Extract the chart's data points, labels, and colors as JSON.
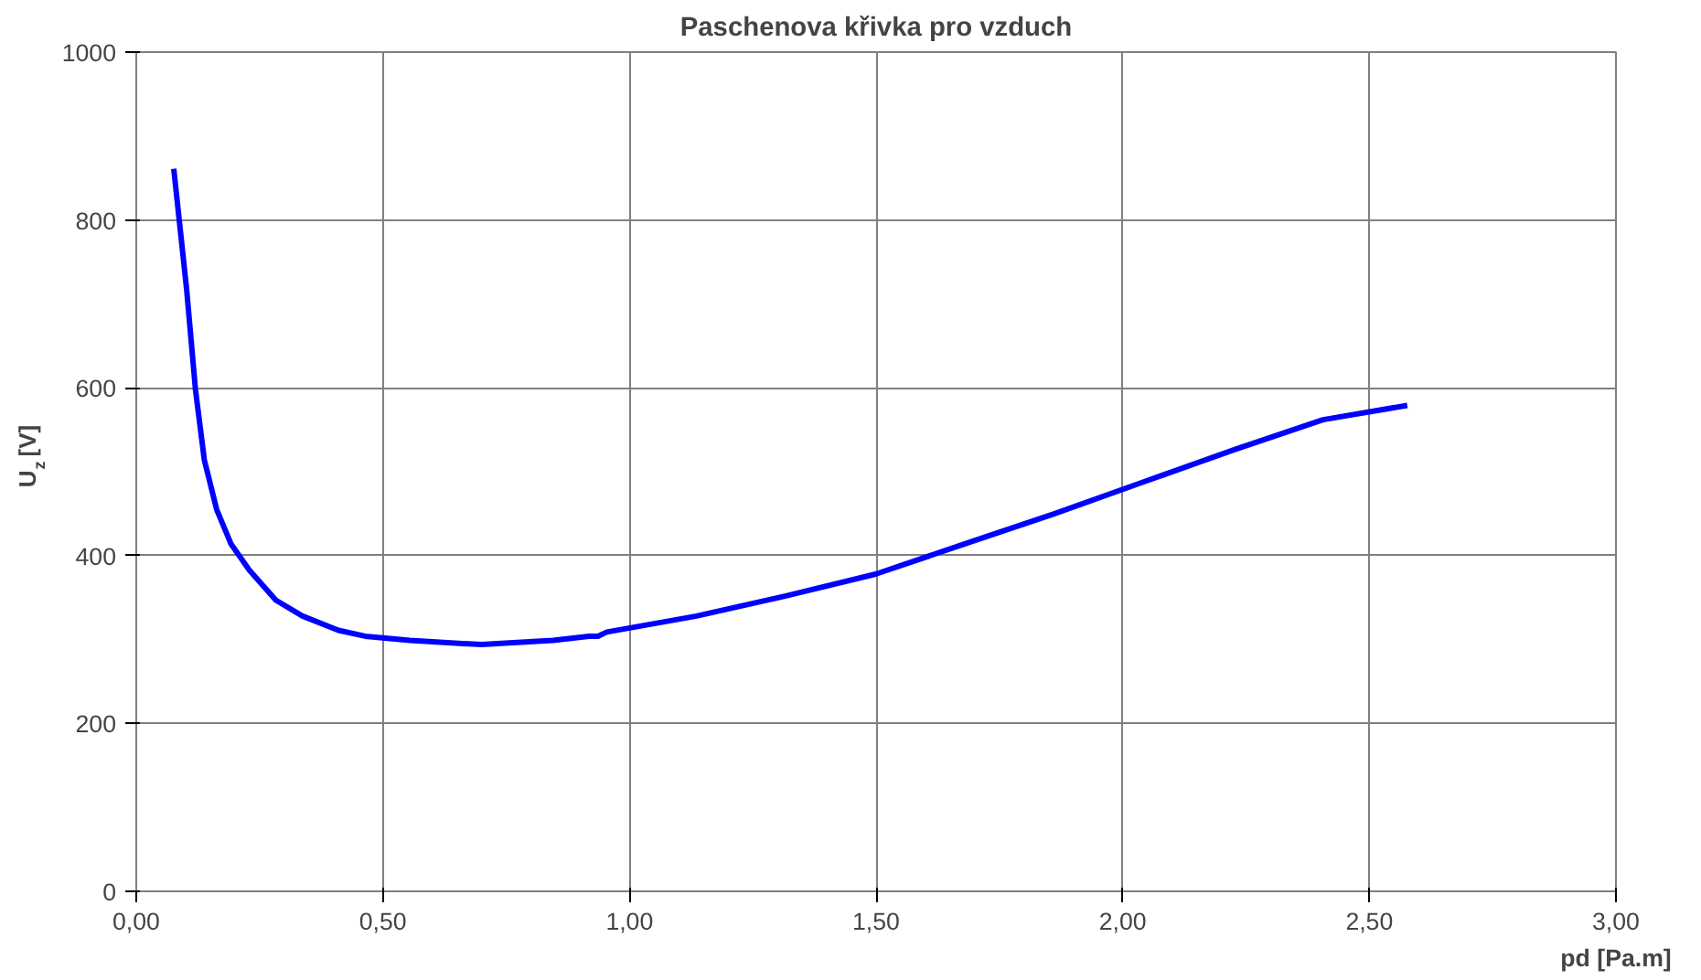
{
  "chart_data": {
    "type": "line",
    "title": "Paschenova křivka pro vzduch",
    "xlabel": "pd [Pa.m]",
    "ylabel": "U$_{z}$ [V]",
    "x": [
      0.076,
      0.102,
      0.12,
      0.138,
      0.163,
      0.192,
      0.229,
      0.283,
      0.337,
      0.41,
      0.464,
      0.555,
      0.7,
      0.845,
      0.918,
      0.936,
      0.954,
      1.136,
      1.317,
      1.499,
      1.68,
      1.862,
      2.043,
      2.225,
      2.406,
      2.577
    ],
    "series": [
      {
        "color": "#0000ff",
        "values": [
          861,
          718,
          598,
          514,
          455,
          414,
          383,
          347,
          328,
          311,
          304,
          299,
          294,
          299,
          304,
          304,
          309,
          328,
          352,
          378,
          414,
          450,
          488,
          526,
          562,
          579
        ]
      }
    ],
    "xlim": [
      0,
      3
    ],
    "ylim": [
      0,
      1000
    ],
    "xticks": [
      {
        "value": 0,
        "label": "0,00"
      },
      {
        "value": 0.5,
        "label": "0,50"
      },
      {
        "value": 1,
        "label": "1,00"
      },
      {
        "value": 1.5,
        "label": "1,50"
      },
      {
        "value": 2,
        "label": "2,00"
      },
      {
        "value": 2.5,
        "label": "2,50"
      },
      {
        "value": 3,
        "label": "3,00"
      }
    ],
    "yticks": [
      0,
      200,
      400,
      600,
      800,
      1000
    ],
    "grid": true,
    "marker": "none",
    "line_style": "solid"
  }
}
